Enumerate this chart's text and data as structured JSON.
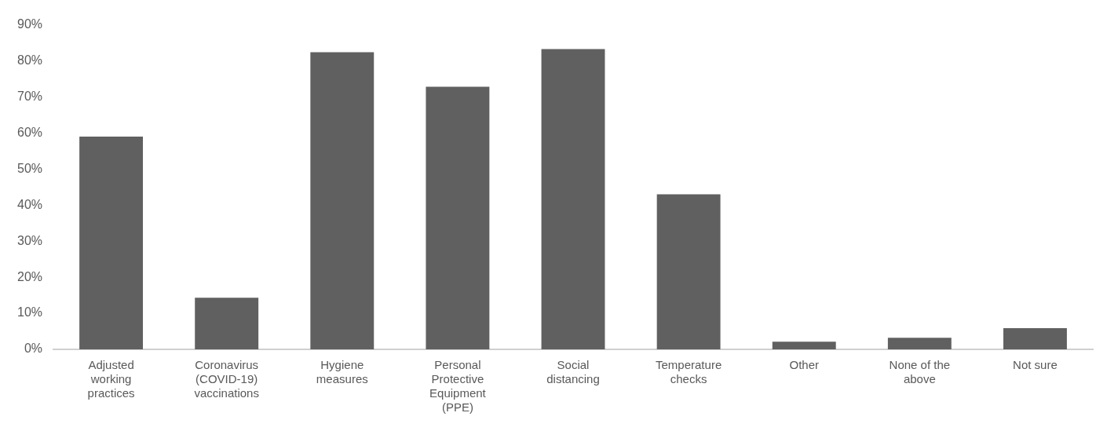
{
  "chart_data": {
    "type": "bar",
    "categories": [
      "Adjusted working practices",
      "Coronavirus (COVID-19) vaccinations",
      "Hygiene measures",
      "Personal Protective Equipment (PPE)",
      "Social distancing",
      "Temperature checks",
      "Other",
      "None of the above",
      "Not sure"
    ],
    "values": [
      59,
      14.3,
      82.4,
      72.8,
      83.3,
      43,
      2.1,
      3.2,
      5.9
    ],
    "color": "#606060",
    "ylim": [
      0,
      90
    ],
    "yticks": [
      {
        "value": 0,
        "label": "0%"
      },
      {
        "value": 10,
        "label": "10%"
      },
      {
        "value": 20,
        "label": "20%"
      },
      {
        "value": 30,
        "label": "30%"
      },
      {
        "value": 40,
        "label": "40%"
      },
      {
        "value": 50,
        "label": "50%"
      },
      {
        "value": 60,
        "label": "60%"
      },
      {
        "value": 70,
        "label": "70%"
      },
      {
        "value": 80,
        "label": "80%"
      },
      {
        "value": 90,
        "label": "90%"
      }
    ],
    "grid": false,
    "legend": false
  }
}
